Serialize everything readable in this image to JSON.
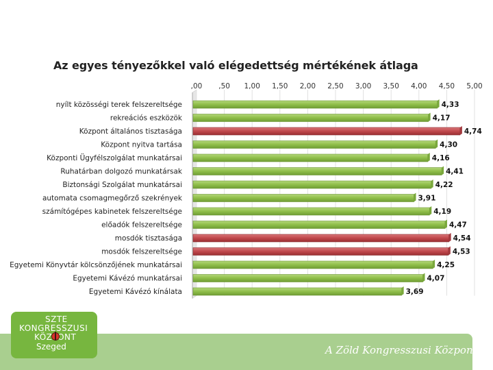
{
  "chart_data": {
    "type": "bar",
    "orientation": "horizontal",
    "title": "Az egyes tényezőkkel való elégedettség mértékének átlaga",
    "xlim": [
      0,
      5
    ],
    "tick_labels": [
      ",00",
      ",50",
      "1,00",
      "1,50",
      "2,00",
      "2,50",
      "3,00",
      "3,50",
      "4,00",
      "4,50",
      "5,00"
    ],
    "tick_values": [
      0,
      0.5,
      1,
      1.5,
      2,
      2.5,
      3,
      3.5,
      4,
      4.5,
      5
    ],
    "categories": [
      "nyílt közösségi terek felszereltsége",
      "rekreációs eszközök",
      "Központ általános tisztasága",
      "Központ nyitva tartása",
      "Központi Ügyfélszolgálat munkatársai",
      "Ruhatárban dolgozó munkatársak",
      "Biztonsági Szolgálat munkatársai",
      "automata csomagmegőrző szekrények",
      "számítógépes kabinetek felszereltsége",
      "előadók felszereltsége",
      "mosdók tisztasága",
      "mosdók felszereltsége",
      "Egyetemi Könyvtár kölcsönzőjének munkatársai",
      "Egyetemi Kávézó munkatársai",
      "Egyetemi Kávézó kínálata"
    ],
    "values": [
      4.33,
      4.17,
      4.74,
      4.3,
      4.16,
      4.41,
      4.22,
      3.91,
      4.19,
      4.47,
      4.54,
      4.53,
      4.25,
      4.07,
      3.69
    ],
    "value_labels": [
      "4,33",
      "4,17",
      "4,74",
      "4,30",
      "4,16",
      "4,41",
      "4,22",
      "3,91",
      "4,19",
      "4,47",
      "4,54",
      "4,53",
      "4,25",
      "4,07",
      "3,69"
    ],
    "highlighted": [
      false,
      false,
      true,
      false,
      false,
      false,
      false,
      false,
      false,
      false,
      true,
      true,
      false,
      false,
      false
    ]
  },
  "colors": {
    "bar_normal": "#8fbe49",
    "bar_normal_light": "#b3d77a",
    "bar_highlight": "#c0474b",
    "bar_highlight_light": "#d9777a",
    "grid": "#e0e0e0",
    "wall": "#f2f2f2"
  },
  "footer": {
    "tagline": "A Zöld Kongresszusi Központ"
  },
  "logo": {
    "line1": "SZTE",
    "line2": "KONGRESSZUSI",
    "line3": "KÖZPONT",
    "line4": "Szeged"
  }
}
